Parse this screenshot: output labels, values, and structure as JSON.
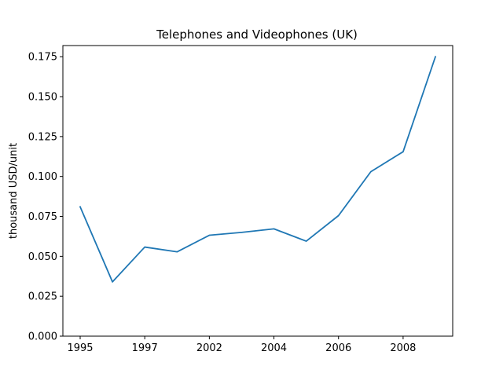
{
  "chart_data": {
    "type": "line",
    "title": "Telephones and Videophones (UK)",
    "xlabel": "",
    "ylabel": "thousand USD/unit",
    "x": [
      "1995",
      "1996",
      "1997",
      "2001",
      "2002",
      "2003",
      "2004",
      "2005",
      "2006",
      "2007",
      "2008",
      "2009"
    ],
    "x_tick_labels": [
      "1995",
      "1997",
      "2002",
      "2004",
      "2006",
      "2008"
    ],
    "y_ticks": [
      "0.000",
      "0.025",
      "0.050",
      "0.075",
      "0.100",
      "0.125",
      "0.150",
      "0.175"
    ],
    "ylim": [
      0.0,
      0.182
    ],
    "series": [
      {
        "values": [
          0.081,
          0.034,
          0.0558,
          0.0528,
          0.0632,
          0.065,
          0.0672,
          0.0595,
          0.0755,
          0.103,
          0.1155,
          0.175
        ],
        "color": "#1f77b4"
      }
    ],
    "grid": false,
    "legend": "none"
  }
}
